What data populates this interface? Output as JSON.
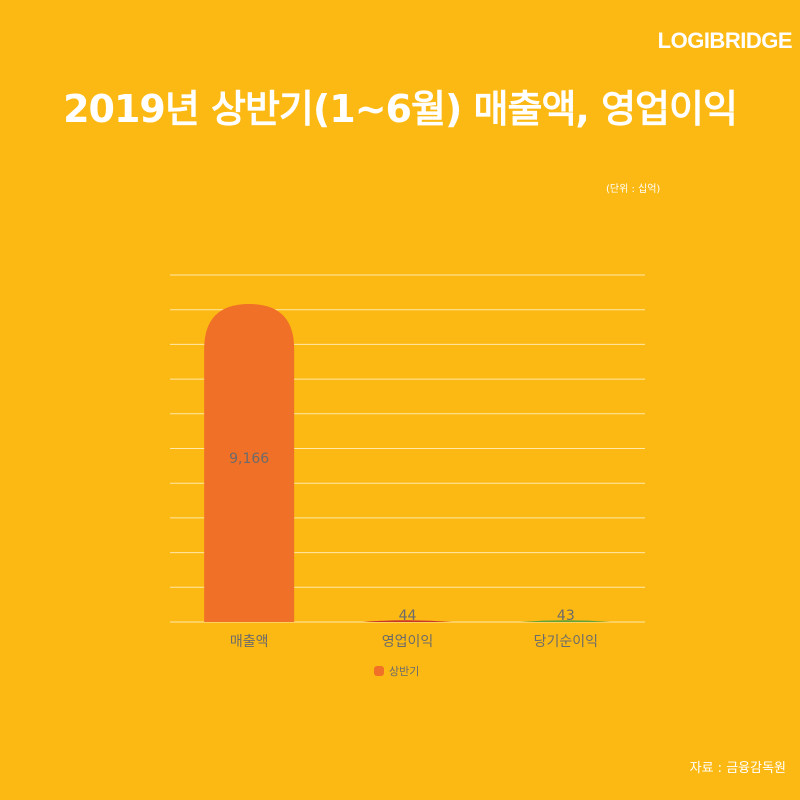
{
  "brand": "LOGIBRIDGE",
  "title": "2019년 상반기(1~6월) 매출액, 영업이익",
  "unit_note": "(단위 : 십억)",
  "source": "자료 : 금융감독원",
  "colors": {
    "background": "#FDB913",
    "bar_sales": "#F07027",
    "bar_operating": "#C8362B",
    "bar_net": "#5FA23A",
    "gridline": "#FFE8A8",
    "label_text": "#6b6b6b"
  },
  "chart_data": {
    "type": "bar",
    "categories": [
      "매출액",
      "영업이익",
      "당기순이익"
    ],
    "series": [
      {
        "name": "상반기",
        "values": [
          9166,
          44,
          43
        ],
        "labels": [
          "9,166",
          "44",
          "43"
        ]
      }
    ],
    "ylim": [
      0,
      10000
    ],
    "grid": true,
    "legend": "bottom"
  }
}
